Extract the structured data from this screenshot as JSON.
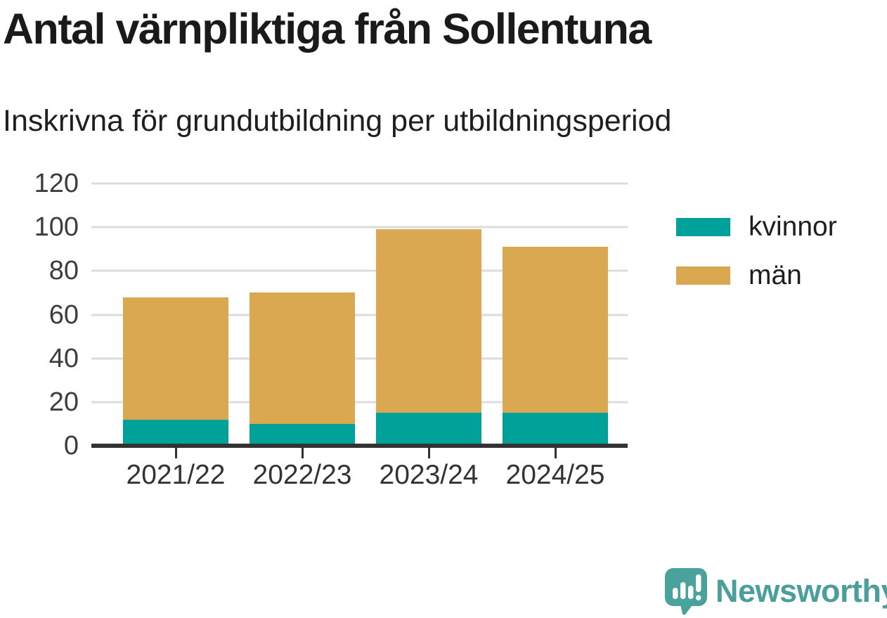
{
  "title": "Antal värnpliktiga från Sollentuna",
  "subtitle": "Inskrivna för grundutbildning per utbildningsperiod",
  "chart_data": {
    "type": "bar",
    "stacked": true,
    "title": "Antal värnpliktiga från Sollentuna",
    "subtitle": "Inskrivna för grundutbildning per utbildningsperiod",
    "categories": [
      "2021/22",
      "2022/23",
      "2023/24",
      "2024/25"
    ],
    "series": [
      {
        "name": "kvinnor",
        "color": "#00a199",
        "values": [
          12,
          10,
          15,
          15
        ]
      },
      {
        "name": "män",
        "color": "#d9a851",
        "values": [
          56,
          60,
          84,
          76
        ]
      }
    ],
    "stack_totals": [
      68,
      70,
      99,
      91
    ],
    "ylim": [
      0,
      120
    ],
    "yticks": [
      0,
      20,
      40,
      60,
      80,
      100,
      120
    ],
    "xlabel": "",
    "ylabel": "",
    "grid": true,
    "legend_position": "right",
    "colors": {
      "gridline": "#dcdcdc",
      "axis": "#333333",
      "tick_label": "#3d3d3d"
    }
  },
  "branding": {
    "logo_text": "Newsworthy",
    "logo_color": "#4a9f9a",
    "logo_icon": "speech-bubble-bar-chart-icon"
  }
}
